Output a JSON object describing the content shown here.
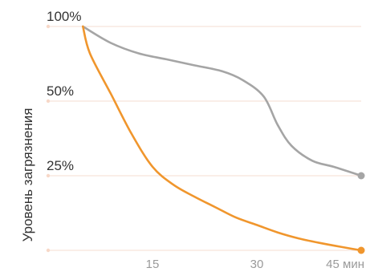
{
  "chart_data": {
    "type": "line",
    "title": "",
    "xlabel": "",
    "ylabel": "Уровень загрязнения",
    "x_ticks": [
      {
        "value": 15,
        "label": "15"
      },
      {
        "value": 30,
        "label": "30"
      },
      {
        "value": 45,
        "label": "45 мин"
      }
    ],
    "y_ticks": [
      {
        "value": 100,
        "label": "100%"
      },
      {
        "value": 50,
        "label": "50%"
      },
      {
        "value": 25,
        "label": "25%"
      },
      {
        "value": 0,
        "label": ""
      }
    ],
    "xlim": [
      0,
      45
    ],
    "y_scale": "piecewise",
    "grid": true,
    "series": [
      {
        "color": "#a5a5a5",
        "points": [
          {
            "x": 5,
            "y": 100
          },
          {
            "x": 9,
            "y": 89
          },
          {
            "x": 13,
            "y": 82
          },
          {
            "x": 17,
            "y": 78
          },
          {
            "x": 21,
            "y": 74
          },
          {
            "x": 25,
            "y": 70
          },
          {
            "x": 28,
            "y": 64
          },
          {
            "x": 31,
            "y": 53
          },
          {
            "x": 33,
            "y": 42
          },
          {
            "x": 35,
            "y": 35
          },
          {
            "x": 38,
            "y": 30
          },
          {
            "x": 41,
            "y": 28
          },
          {
            "x": 45,
            "y": 25
          }
        ]
      },
      {
        "color": "#f0962d",
        "points": [
          {
            "x": 5,
            "y": 100
          },
          {
            "x": 6,
            "y": 82
          },
          {
            "x": 9,
            "y": 55
          },
          {
            "x": 12,
            "y": 39
          },
          {
            "x": 15,
            "y": 28
          },
          {
            "x": 18,
            "y": 22
          },
          {
            "x": 21,
            "y": 18
          },
          {
            "x": 24,
            "y": 14.5
          },
          {
            "x": 27,
            "y": 11
          },
          {
            "x": 30,
            "y": 8.5
          },
          {
            "x": 33,
            "y": 6
          },
          {
            "x": 36,
            "y": 4
          },
          {
            "x": 39,
            "y": 2.5
          },
          {
            "x": 42,
            "y": 1.2
          },
          {
            "x": 45,
            "y": 0
          }
        ]
      }
    ]
  }
}
